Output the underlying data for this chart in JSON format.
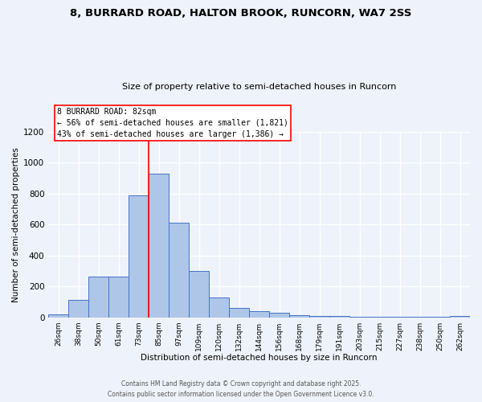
{
  "title1": "8, BURRARD ROAD, HALTON BROOK, RUNCORN, WA7 2SS",
  "title2": "Size of property relative to semi-detached houses in Runcorn",
  "xlabel": "Distribution of semi-detached houses by size in Runcorn",
  "ylabel": "Number of semi-detached properties",
  "categories": [
    "26sqm",
    "38sqm",
    "50sqm",
    "61sqm",
    "73sqm",
    "85sqm",
    "97sqm",
    "109sqm",
    "120sqm",
    "132sqm",
    "144sqm",
    "156sqm",
    "168sqm",
    "179sqm",
    "191sqm",
    "203sqm",
    "215sqm",
    "227sqm",
    "238sqm",
    "250sqm",
    "262sqm"
  ],
  "values": [
    20,
    110,
    265,
    265,
    790,
    930,
    610,
    300,
    130,
    60,
    40,
    30,
    15,
    8,
    8,
    3,
    1,
    1,
    1,
    1,
    8
  ],
  "bar_color": "#aec6e8",
  "bar_edge_color": "#4472c4",
  "vline_x": 4.5,
  "annotation_title": "8 BURRARD ROAD: 82sqm",
  "annotation_line1": "← 56% of semi-detached houses are smaller (1,821)",
  "annotation_line2": "43% of semi-detached houses are larger (1,386) →",
  "footer1": "Contains HM Land Registry data © Crown copyright and database right 2025.",
  "footer2": "Contains public sector information licensed under the Open Government Licence v3.0.",
  "ylim": [
    0,
    1200
  ],
  "background_color": "#eef2fa",
  "grid_color": "#ffffff"
}
